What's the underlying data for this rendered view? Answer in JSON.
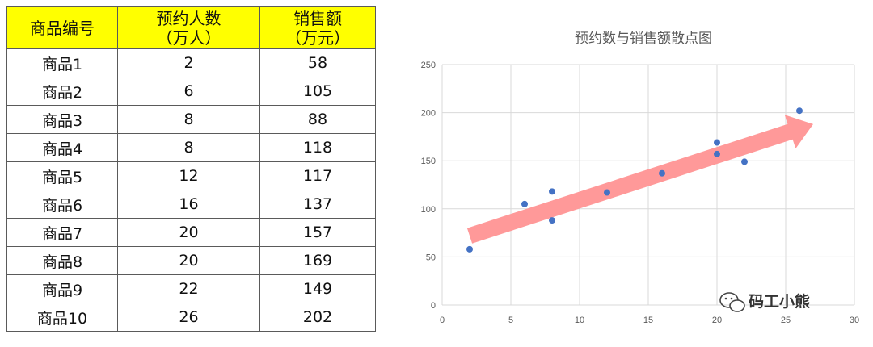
{
  "table": {
    "headers": [
      {
        "line1": "商品编号",
        "line2": ""
      },
      {
        "line1": "预约人数",
        "line2": "（万人）"
      },
      {
        "line1": "销售额",
        "line2": "（万元）"
      }
    ],
    "rows": [
      [
        "商品1",
        "2",
        "58"
      ],
      [
        "商品2",
        "6",
        "105"
      ],
      [
        "商品3",
        "8",
        "88"
      ],
      [
        "商品4",
        "8",
        "118"
      ],
      [
        "商品5",
        "12",
        "117"
      ],
      [
        "商品6",
        "16",
        "137"
      ],
      [
        "商品7",
        "20",
        "157"
      ],
      [
        "商品8",
        "20",
        "169"
      ],
      [
        "商品9",
        "22",
        "149"
      ],
      [
        "商品10",
        "26",
        "202"
      ]
    ],
    "header_bg": "#ffff00"
  },
  "chart_data": {
    "type": "scatter",
    "title": "预约数与销售额散点图",
    "x": [
      2,
      6,
      8,
      8,
      12,
      16,
      20,
      20,
      22,
      26
    ],
    "y": [
      58,
      105,
      88,
      118,
      117,
      137,
      157,
      169,
      149,
      202
    ],
    "xlim": [
      0,
      30
    ],
    "ylim": [
      0,
      250
    ],
    "xticks": [
      0,
      5,
      10,
      15,
      20,
      25,
      30
    ],
    "yticks": [
      0,
      50,
      100,
      150,
      200,
      250
    ],
    "grid": true,
    "point_color": "#4472c4",
    "trend_arrow": {
      "from": [
        2,
        72
      ],
      "to": [
        27,
        188
      ],
      "color": "#ff9999"
    }
  },
  "watermark": {
    "text": "码工小熊",
    "icon": "wechat-icon"
  }
}
